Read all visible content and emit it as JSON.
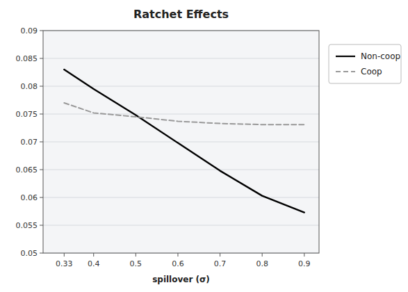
{
  "chart_data": {
    "type": "line",
    "title": "Ratchet Effects",
    "xlabel": "spillover (σ)",
    "x": [
      0.33,
      0.4,
      0.5,
      0.6,
      0.7,
      0.8,
      0.9
    ],
    "series": [
      {
        "name": "Non-coop",
        "color": "#000000",
        "line_style": "solid",
        "values": [
          0.083,
          0.0795,
          0.0748,
          0.0698,
          0.0648,
          0.0603,
          0.0573
        ]
      },
      {
        "name": "Coop",
        "color": "#999999",
        "line_style": "dashed",
        "values": [
          0.077,
          0.0752,
          0.0745,
          0.0737,
          0.0733,
          0.0731,
          0.0731
        ]
      }
    ],
    "xlim": [
      0.28,
      0.935
    ],
    "ylim": [
      0.05,
      0.09
    ],
    "xticks": [
      0.33,
      0.4,
      0.5,
      0.6,
      0.7,
      0.8,
      0.9
    ],
    "yticks": [
      0.05,
      0.055,
      0.06,
      0.065,
      0.07,
      0.075,
      0.08,
      0.085,
      0.09
    ],
    "grid": true,
    "legend": "right"
  }
}
